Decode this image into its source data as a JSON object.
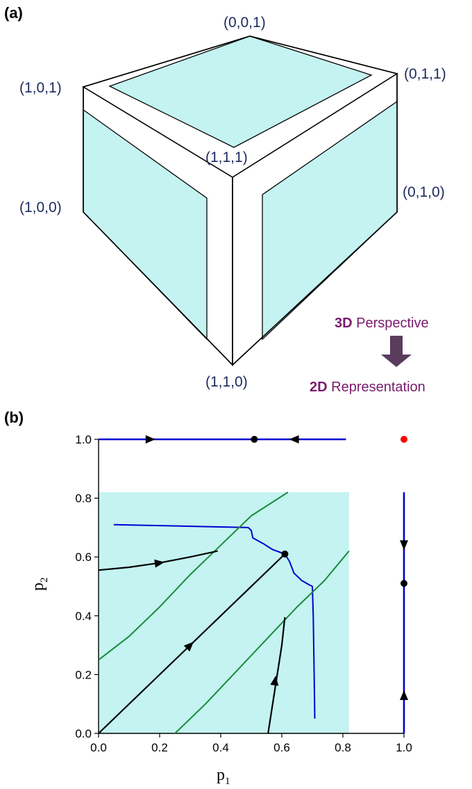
{
  "panel_a": {
    "label": "(a)",
    "vertices": [
      {
        "id": "v001",
        "text": "(0,0,1)"
      },
      {
        "id": "v101",
        "text": "(1,0,1)"
      },
      {
        "id": "v011",
        "text": "(0,1,1)"
      },
      {
        "id": "v111",
        "text": "(1,1,1)"
      },
      {
        "id": "v100",
        "text": "(1,0,0)"
      },
      {
        "id": "v010",
        "text": "(0,1,0)"
      },
      {
        "id": "v110",
        "text": "(1,1,0)"
      }
    ],
    "perspective": {
      "top_bold": "3D",
      "top_rest": " Perspective",
      "bottom_bold": "2D",
      "bottom_rest": " Representation"
    },
    "colors": {
      "face": "#c4f3f1",
      "text": "#1c2a5e",
      "arrow": "#5a3d5c",
      "accent": "#7a1a6c"
    }
  },
  "panel_b": {
    "label": "(b)",
    "x_title": "p",
    "x_sub": "1",
    "y_title": "p",
    "y_sub": "2",
    "colors": {
      "region": "#c4f3f1",
      "boundary": "#0000d0",
      "separatrix": "#1a8a3a",
      "trajectory": "#000000",
      "unstable": "#ff0000"
    }
  },
  "chart_data": {
    "type": "line",
    "xlabel": "p1",
    "ylabel": "p2",
    "xlim": [
      0,
      1
    ],
    "ylim": [
      0,
      1
    ],
    "x_ticks": [
      "0.0",
      "0.2",
      "0.4",
      "0.6",
      "0.8",
      "1.0"
    ],
    "y_ticks": [
      "0.0",
      "0.2",
      "0.4",
      "0.6",
      "0.8",
      "1.0"
    ],
    "shaded_region": {
      "x": [
        0,
        0.82
      ],
      "y": [
        0,
        0.82
      ]
    },
    "series": [
      {
        "kind": "edge",
        "points": [
          [
            0,
            1.0
          ],
          [
            0.81,
            1.0
          ]
        ]
      },
      {
        "kind": "edge",
        "points": [
          [
            1.0,
            0
          ],
          [
            1.0,
            0.82
          ]
        ]
      },
      {
        "kind": "boundary",
        "points": [
          [
            0.05,
            0.71
          ],
          [
            0.49,
            0.7
          ],
          [
            0.5,
            0.69
          ],
          [
            0.505,
            0.665
          ],
          [
            0.54,
            0.645
          ],
          [
            0.57,
            0.625
          ],
          [
            0.61,
            0.61
          ],
          [
            0.625,
            0.585
          ],
          [
            0.64,
            0.545
          ],
          [
            0.665,
            0.52
          ],
          [
            0.69,
            0.505
          ],
          [
            0.7,
            0.5
          ],
          [
            0.703,
            0.4
          ],
          [
            0.706,
            0.2
          ],
          [
            0.708,
            0.05
          ]
        ]
      },
      {
        "kind": "separatrix",
        "points": [
          [
            0,
            0.25
          ],
          [
            0.1,
            0.33
          ],
          [
            0.2,
            0.43
          ],
          [
            0.3,
            0.54
          ],
          [
            0.4,
            0.64
          ],
          [
            0.5,
            0.74
          ],
          [
            0.62,
            0.82
          ]
        ]
      },
      {
        "kind": "separatrix",
        "points": [
          [
            0.25,
            0
          ],
          [
            0.35,
            0.1
          ],
          [
            0.45,
            0.21
          ],
          [
            0.55,
            0.32
          ],
          [
            0.65,
            0.43
          ],
          [
            0.74,
            0.52
          ],
          [
            0.82,
            0.62
          ]
        ]
      },
      {
        "kind": "trajectory",
        "points": [
          [
            0,
            0
          ],
          [
            0.61,
            0.61
          ]
        ]
      },
      {
        "kind": "trajectory",
        "points": [
          [
            0,
            0.555
          ],
          [
            0.1,
            0.565
          ],
          [
            0.2,
            0.58
          ],
          [
            0.3,
            0.6
          ],
          [
            0.39,
            0.62
          ]
        ]
      },
      {
        "kind": "trajectory",
        "points": [
          [
            0.555,
            0
          ],
          [
            0.57,
            0.1
          ],
          [
            0.585,
            0.2
          ],
          [
            0.6,
            0.3
          ],
          [
            0.61,
            0.395
          ]
        ]
      }
    ],
    "arrows": [
      {
        "x": 0.17,
        "y": 1.0,
        "dir": "right"
      },
      {
        "x": 0.64,
        "y": 1.0,
        "dir": "left"
      },
      {
        "x": 1.0,
        "y": 0.64,
        "dir": "down"
      },
      {
        "x": 1.0,
        "y": 0.13,
        "dir": "up"
      },
      {
        "x": 0.3,
        "y": 0.3,
        "angle": 45
      },
      {
        "x": 0.2,
        "y": 0.58,
        "angle": 8
      },
      {
        "x": 0.578,
        "y": 0.18,
        "angle": 82
      }
    ],
    "fixed_points": [
      {
        "x": 0.51,
        "y": 1.0,
        "color": "#000000"
      },
      {
        "x": 1.0,
        "y": 1.0,
        "color": "#ff0000"
      },
      {
        "x": 1.0,
        "y": 0.51,
        "color": "#000000"
      },
      {
        "x": 0.61,
        "y": 0.61,
        "color": "#000000"
      }
    ]
  }
}
